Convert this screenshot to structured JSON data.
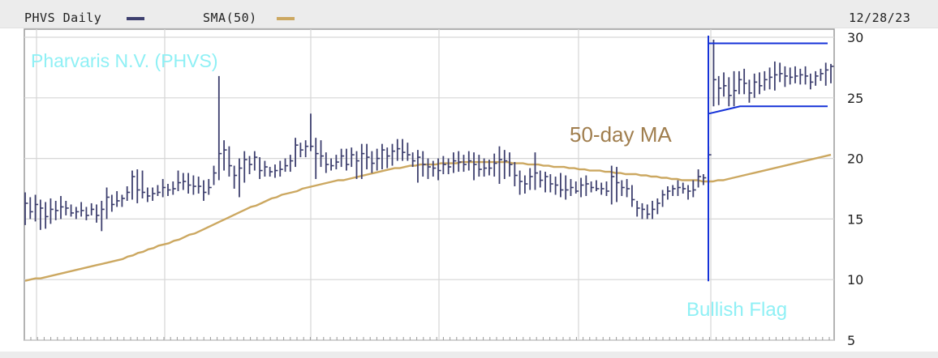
{
  "header": {
    "ticker_label": "PHVS Daily",
    "sma_label": "SMA(50)",
    "date": "12/28/23",
    "colors": {
      "price": "#3d3f6e",
      "sma": "#cca861"
    }
  },
  "annotations": {
    "company": "Pharvaris N.V. (PHVS)",
    "ma": "50-day MA",
    "pattern": "Bullish Flag",
    "colors": {
      "company": "#8ff0f5",
      "ma": "#a07e4e",
      "pattern": "#8ff0f5",
      "lines": "#1532d8"
    }
  },
  "chart_data": {
    "type": "ohlc",
    "series": [
      {
        "name": "PHVS Daily",
        "color": "#3d3f6e",
        "ohlc_high_low_close": []
      },
      {
        "name": "SMA(50)",
        "color": "#cca861"
      }
    ],
    "y_ticks": [
      5,
      10,
      15,
      20,
      25,
      30
    ],
    "ylim": [
      5,
      30
    ],
    "x_ticks_labeled": false,
    "grid": true,
    "date_end": "12/28/23",
    "price_bars": [
      [
        17.2,
        14.5,
        16.3
      ],
      [
        16.8,
        15.0,
        15.6
      ],
      [
        17.0,
        14.8,
        16.2
      ],
      [
        16.6,
        14.1,
        15.9
      ],
      [
        16.4,
        14.2,
        15.2
      ],
      [
        16.7,
        14.6,
        15.8
      ],
      [
        16.5,
        14.9,
        15.7
      ],
      [
        16.9,
        15.0,
        16.0
      ],
      [
        16.5,
        15.3,
        15.9
      ],
      [
        16.2,
        15.2,
        15.5
      ],
      [
        16.0,
        15.0,
        15.6
      ],
      [
        16.4,
        15.2,
        15.7
      ],
      [
        16.0,
        14.9,
        15.3
      ],
      [
        16.3,
        15.3,
        15.8
      ],
      [
        16.2,
        14.7,
        15.3
      ],
      [
        16.5,
        14.0,
        15.8
      ],
      [
        17.6,
        15.0,
        16.8
      ],
      [
        17.0,
        15.6,
        16.2
      ],
      [
        17.3,
        16.0,
        16.5
      ],
      [
        17.0,
        16.0,
        16.7
      ],
      [
        17.7,
        16.5,
        17.2
      ],
      [
        19.0,
        16.6,
        18.5
      ],
      [
        19.1,
        16.3,
        17.4
      ],
      [
        19.0,
        16.7,
        17.2
      ],
      [
        17.6,
        16.4,
        16.9
      ],
      [
        17.6,
        16.5,
        17.1
      ],
      [
        17.8,
        16.9,
        17.2
      ],
      [
        18.3,
        16.8,
        17.6
      ],
      [
        17.9,
        16.9,
        17.4
      ],
      [
        18.1,
        17.0,
        17.5
      ],
      [
        19.0,
        17.3,
        18.0
      ],
      [
        18.8,
        17.4,
        18.1
      ],
      [
        18.8,
        17.1,
        17.8
      ],
      [
        18.6,
        17.0,
        17.7
      ],
      [
        18.5,
        17.1,
        17.7
      ],
      [
        18.2,
        16.5,
        17.2
      ],
      [
        18.3,
        17.0,
        17.6
      ],
      [
        19.4,
        17.8,
        18.8
      ],
      [
        26.8,
        18.2,
        20.4
      ],
      [
        21.5,
        19.0,
        20.7
      ],
      [
        21.0,
        18.5,
        19.4
      ],
      [
        19.4,
        17.5,
        18.6
      ],
      [
        20.0,
        16.8,
        19.2
      ],
      [
        20.6,
        18.0,
        19.9
      ],
      [
        20.2,
        18.7,
        19.5
      ],
      [
        20.6,
        19.0,
        20.1
      ],
      [
        20.1,
        18.3,
        19.0
      ],
      [
        19.8,
        18.5,
        19.3
      ],
      [
        19.3,
        18.5,
        18.9
      ],
      [
        19.5,
        18.4,
        19.0
      ],
      [
        19.8,
        18.5,
        19.1
      ],
      [
        20.0,
        18.9,
        19.4
      ],
      [
        20.3,
        18.9,
        19.8
      ],
      [
        21.7,
        19.3,
        21.1
      ],
      [
        21.3,
        20.1,
        20.7
      ],
      [
        21.5,
        20.1,
        21.0
      ],
      [
        23.7,
        20.6,
        21.0
      ],
      [
        21.7,
        18.3,
        20.4
      ],
      [
        21.5,
        19.3,
        20.2
      ],
      [
        20.5,
        18.8,
        19.5
      ],
      [
        20.0,
        19.0,
        19.4
      ],
      [
        20.3,
        19.1,
        19.7
      ],
      [
        20.8,
        19.3,
        20.2
      ],
      [
        20.8,
        19.0,
        19.5
      ],
      [
        20.9,
        19.3,
        20.3
      ],
      [
        20.6,
        18.3,
        19.8
      ],
      [
        21.2,
        18.3,
        20.4
      ],
      [
        21.2,
        19.1,
        20.1
      ],
      [
        20.6,
        18.8,
        19.6
      ],
      [
        20.8,
        19.0,
        20.0
      ],
      [
        21.2,
        19.1,
        20.7
      ],
      [
        20.9,
        19.2,
        20.2
      ],
      [
        21.2,
        19.4,
        20.6
      ],
      [
        21.6,
        19.8,
        20.8
      ],
      [
        21.6,
        19.8,
        20.5
      ],
      [
        21.3,
        19.8,
        20.3
      ],
      [
        20.5,
        19.3,
        19.8
      ],
      [
        20.7,
        18.0,
        20.1
      ],
      [
        20.6,
        18.5,
        19.5
      ],
      [
        20.0,
        18.3,
        19.3
      ],
      [
        19.8,
        18.5,
        19.2
      ],
      [
        20.0,
        18.2,
        19.0
      ],
      [
        20.2,
        18.7,
        19.5
      ],
      [
        20.0,
        18.7,
        19.3
      ],
      [
        20.5,
        18.8,
        19.8
      ],
      [
        20.6,
        18.9,
        19.7
      ],
      [
        20.3,
        18.9,
        19.5
      ],
      [
        20.6,
        19.0,
        19.8
      ],
      [
        20.5,
        18.2,
        19.5
      ],
      [
        20.3,
        18.5,
        19.1
      ],
      [
        20.0,
        18.5,
        19.2
      ],
      [
        19.9,
        18.6,
        19.2
      ],
      [
        20.4,
        18.5,
        19.6
      ],
      [
        21.0,
        17.9,
        19.9
      ],
      [
        20.7,
        18.3,
        19.8
      ],
      [
        20.5,
        18.5,
        19.5
      ],
      [
        19.7,
        17.7,
        18.6
      ],
      [
        19.0,
        17.0,
        18.1
      ],
      [
        18.6,
        17.1,
        17.9
      ],
      [
        19.2,
        17.4,
        18.5
      ],
      [
        20.5,
        17.4,
        18.8
      ],
      [
        19.0,
        17.6,
        18.2
      ],
      [
        18.9,
        17.2,
        18.5
      ],
      [
        18.7,
        17.2,
        17.9
      ],
      [
        18.5,
        17.0,
        17.8
      ],
      [
        18.8,
        16.8,
        17.4
      ],
      [
        18.6,
        16.6,
        17.4
      ],
      [
        18.3,
        16.9,
        17.6
      ],
      [
        18.1,
        17.1,
        17.3
      ],
      [
        18.4,
        16.8,
        17.8
      ],
      [
        18.6,
        16.9,
        17.9
      ],
      [
        18.1,
        17.2,
        17.6
      ],
      [
        18.2,
        17.3,
        17.5
      ],
      [
        18.0,
        17.0,
        17.5
      ],
      [
        18.1,
        16.9,
        17.3
      ],
      [
        19.4,
        16.2,
        18.5
      ],
      [
        19.3,
        16.4,
        18.0
      ],
      [
        18.2,
        16.9,
        17.6
      ],
      [
        18.3,
        16.8,
        17.5
      ],
      [
        17.8,
        16.0,
        16.6
      ],
      [
        16.5,
        15.2,
        15.9
      ],
      [
        16.3,
        15.0,
        15.8
      ],
      [
        16.2,
        15.0,
        15.4
      ],
      [
        16.5,
        15.0,
        15.8
      ],
      [
        16.7,
        15.4,
        16.3
      ],
      [
        17.4,
        16.0,
        17.0
      ],
      [
        17.7,
        16.6,
        17.3
      ],
      [
        17.8,
        16.9,
        17.5
      ],
      [
        18.2,
        16.9,
        17.6
      ],
      [
        18.0,
        17.1,
        17.5
      ],
      [
        17.8,
        16.6,
        17.3
      ],
      [
        18.2,
        16.8,
        17.4
      ],
      [
        19.1,
        17.6,
        18.5
      ],
      [
        18.7,
        17.8,
        18.4
      ],
      [
        21.0,
        17.9,
        20.3
      ],
      [
        29.8,
        24.3,
        26.5
      ],
      [
        26.8,
        24.4,
        25.8
      ],
      [
        27.1,
        25.1,
        26.0
      ],
      [
        26.7,
        24.3,
        25.2
      ],
      [
        27.2,
        24.3,
        25.6
      ],
      [
        27.2,
        25.3,
        26.5
      ],
      [
        27.4,
        25.3,
        26.2
      ],
      [
        26.5,
        24.6,
        25.4
      ],
      [
        27.0,
        25.0,
        26.3
      ],
      [
        27.1,
        25.3,
        26.0
      ],
      [
        27.2,
        25.6,
        26.5
      ],
      [
        27.5,
        25.7,
        26.7
      ],
      [
        28.0,
        25.6,
        26.9
      ],
      [
        27.9,
        26.3,
        27.0
      ],
      [
        27.6,
        25.9,
        26.8
      ],
      [
        27.5,
        26.1,
        26.7
      ],
      [
        27.6,
        26.2,
        26.8
      ],
      [
        27.4,
        26.1,
        26.9
      ],
      [
        27.6,
        26.1,
        26.8
      ],
      [
        27.0,
        25.7,
        26.3
      ],
      [
        27.2,
        26.0,
        26.8
      ],
      [
        27.4,
        26.4,
        27.0
      ],
      [
        27.9,
        26.0,
        27.3
      ],
      [
        27.8,
        26.2,
        27.6
      ]
    ],
    "sma_values": [
      9.9,
      10.0,
      10.1,
      10.1,
      10.2,
      10.3,
      10.4,
      10.5,
      10.6,
      10.7,
      10.8,
      10.9,
      11.0,
      11.1,
      11.2,
      11.3,
      11.4,
      11.5,
      11.6,
      11.7,
      11.9,
      12.0,
      12.2,
      12.3,
      12.5,
      12.6,
      12.8,
      12.9,
      13.0,
      13.2,
      13.3,
      13.5,
      13.7,
      13.8,
      14.0,
      14.2,
      14.4,
      14.6,
      14.8,
      15.0,
      15.2,
      15.4,
      15.6,
      15.8,
      16.0,
      16.1,
      16.3,
      16.5,
      16.7,
      16.8,
      17.0,
      17.1,
      17.2,
      17.3,
      17.5,
      17.6,
      17.7,
      17.8,
      17.9,
      18.0,
      18.1,
      18.2,
      18.2,
      18.3,
      18.4,
      18.5,
      18.6,
      18.7,
      18.8,
      18.9,
      19.0,
      19.1,
      19.2,
      19.2,
      19.3,
      19.4,
      19.4,
      19.5,
      19.5,
      19.5,
      19.5,
      19.6,
      19.6,
      19.6,
      19.6,
      19.7,
      19.7,
      19.7,
      19.7,
      19.7,
      19.7,
      19.7,
      19.7,
      19.7,
      19.7,
      19.6,
      19.6,
      19.6,
      19.5,
      19.5,
      19.5,
      19.4,
      19.4,
      19.3,
      19.3,
      19.3,
      19.2,
      19.2,
      19.1,
      19.1,
      19.0,
      19.0,
      19.0,
      18.9,
      18.9,
      18.8,
      18.8,
      18.7,
      18.7,
      18.7,
      18.6,
      18.6,
      18.5,
      18.5,
      18.4,
      18.4,
      18.3,
      18.3,
      18.2,
      18.2,
      18.2,
      18.2,
      18.1,
      18.1,
      18.1,
      18.2,
      18.2,
      18.3,
      18.4,
      18.5,
      18.6,
      18.7,
      18.8,
      18.9,
      19.0,
      19.1,
      19.2,
      19.3,
      19.4,
      19.5,
      19.6,
      19.7,
      19.8,
      19.9,
      20.0,
      20.1,
      20.2,
      20.3
    ],
    "pattern_markers": {
      "flag_top_price": 29.5,
      "flag_bottom_start_price": 23.7,
      "flag_bottom_end_price": 24.3,
      "pole_top_price": 30.0,
      "pole_bottom_price": 10.0
    }
  }
}
